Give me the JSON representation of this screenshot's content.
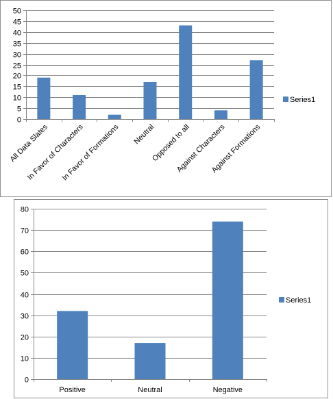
{
  "bar_color": "#4f81bd",
  "axis_color": "#868686",
  "grid_color": "#868686",
  "chart_data": [
    {
      "type": "bar",
      "title": "",
      "xlabel": "",
      "ylabel": "",
      "categories": [
        "All Data Slates",
        "In Favor of Characters",
        "In Favor of Formations",
        "Neutral",
        "Opposed to all",
        "Against Characters",
        "Against Formations"
      ],
      "series": [
        {
          "name": "Series1",
          "values": [
            19,
            11,
            2,
            17,
            43,
            4,
            27
          ]
        }
      ],
      "ylim": [
        0,
        50
      ],
      "yticks": [
        0,
        5,
        10,
        15,
        20,
        25,
        30,
        35,
        40,
        45,
        50
      ],
      "grid": true,
      "legend_position": "right",
      "xtick_rotation": "rotated"
    },
    {
      "type": "bar",
      "title": "",
      "xlabel": "",
      "ylabel": "",
      "categories": [
        "Positive",
        "Neutral",
        "Negative"
      ],
      "series": [
        {
          "name": "Series1",
          "values": [
            32,
            17,
            74
          ]
        }
      ],
      "ylim": [
        0,
        80
      ],
      "yticks": [
        0,
        10,
        20,
        30,
        40,
        50,
        60,
        70,
        80
      ],
      "grid": true,
      "legend_position": "right",
      "xtick_rotation": "horizontal"
    }
  ]
}
